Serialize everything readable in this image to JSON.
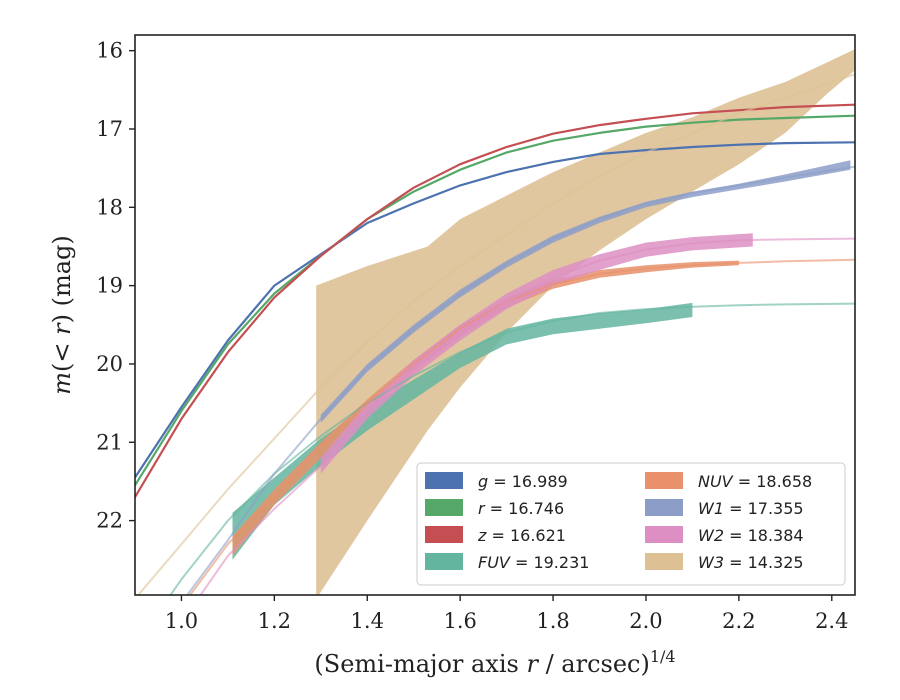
{
  "chart_data": {
    "type": "line",
    "xlabel_prefix": "(Semi-major axis ",
    "xlabel_var": "r",
    "xlabel_suffix": " / arcsec)",
    "xlabel_sup": "1/4",
    "ylabel_var1": "m",
    "ylabel_mid": "(< ",
    "ylabel_var2": "r",
    "ylabel_suffix": ") (mag)",
    "xlim": [
      0.9,
      2.45
    ],
    "ylim": [
      22.95,
      15.8
    ],
    "y_inverted": true,
    "xticks": [
      1.0,
      1.2,
      1.4,
      1.6,
      1.8,
      2.0,
      2.2,
      2.4
    ],
    "xtick_labels": [
      "1.0",
      "1.2",
      "1.4",
      "1.6",
      "1.8",
      "2.0",
      "2.2",
      "2.4"
    ],
    "yticks": [
      16,
      17,
      18,
      19,
      20,
      21,
      22
    ],
    "ytick_labels": [
      "16",
      "17",
      "18",
      "19",
      "20",
      "21",
      "22"
    ],
    "grid": false,
    "legend_position": "lower-right",
    "series": [
      {
        "name": "g",
        "label_var": "g",
        "label_value": "= 16.989",
        "color": "#4c72b0",
        "fit_x": [
          0.9,
          1.0,
          1.1,
          1.2,
          1.3,
          1.4,
          1.5,
          1.6,
          1.7,
          1.8,
          1.9,
          2.0,
          2.1,
          2.2,
          2.3,
          2.45
        ],
        "fit_y": [
          21.45,
          20.55,
          19.7,
          19.0,
          18.6,
          18.2,
          17.95,
          17.72,
          17.55,
          17.42,
          17.32,
          17.27,
          17.23,
          17.2,
          17.18,
          17.17
        ],
        "band_x": [],
        "band_lo": [],
        "band_hi": []
      },
      {
        "name": "r",
        "label_var": "r",
        "label_value": "= 16.746",
        "color": "#55a868",
        "fit_x": [
          0.9,
          1.0,
          1.1,
          1.2,
          1.3,
          1.4,
          1.5,
          1.6,
          1.7,
          1.8,
          1.9,
          2.0,
          2.1,
          2.2,
          2.3,
          2.45
        ],
        "fit_y": [
          21.55,
          20.6,
          19.75,
          19.1,
          18.62,
          18.15,
          17.8,
          17.52,
          17.3,
          17.15,
          17.05,
          16.97,
          16.92,
          16.88,
          16.86,
          16.83
        ],
        "band_x": [],
        "band_lo": [],
        "band_hi": []
      },
      {
        "name": "z",
        "label_var": "z",
        "label_value": "= 16.621",
        "color": "#c44e52",
        "fit_x": [
          0.9,
          1.0,
          1.1,
          1.2,
          1.3,
          1.4,
          1.5,
          1.6,
          1.7,
          1.8,
          1.9,
          2.0,
          2.1,
          2.2,
          2.3,
          2.45
        ],
        "fit_y": [
          21.7,
          20.7,
          19.85,
          19.15,
          18.62,
          18.15,
          17.75,
          17.45,
          17.23,
          17.06,
          16.95,
          16.87,
          16.8,
          16.76,
          16.72,
          16.69
        ],
        "band_x": [],
        "band_lo": [],
        "band_hi": []
      },
      {
        "name": "FUV",
        "label_var": "FUV",
        "label_value": "= 19.231",
        "color": "#64b5a0",
        "fit_x": [
          0.9,
          1.0,
          1.1,
          1.2,
          1.3,
          1.4,
          1.5,
          1.6,
          1.7,
          1.8,
          1.9,
          2.0,
          2.1,
          2.2,
          2.3,
          2.45
        ],
        "fit_y": [
          23.6,
          22.75,
          22.0,
          21.4,
          20.92,
          20.5,
          20.15,
          19.85,
          19.6,
          19.45,
          19.35,
          19.3,
          19.27,
          19.25,
          19.24,
          19.23
        ],
        "band_x": [
          1.11,
          1.2,
          1.3,
          1.4,
          1.5,
          1.6,
          1.7,
          1.8,
          1.9,
          2.0,
          2.1
        ],
        "band_lo": [
          21.9,
          21.45,
          20.95,
          20.55,
          20.2,
          19.85,
          19.55,
          19.42,
          19.35,
          19.3,
          19.22
        ],
        "band_hi": [
          22.5,
          21.8,
          21.3,
          20.85,
          20.45,
          20.05,
          19.75,
          19.62,
          19.55,
          19.48,
          19.4
        ]
      },
      {
        "name": "NUV",
        "label_var": "NUV",
        "label_value": "= 18.658",
        "color": "#e8916a",
        "fit_x": [
          0.9,
          1.0,
          1.1,
          1.2,
          1.3,
          1.4,
          1.5,
          1.6,
          1.7,
          1.8,
          1.9,
          2.0,
          2.1,
          2.2,
          2.3,
          2.45
        ],
        "fit_y": [
          24.0,
          23.1,
          22.3,
          21.7,
          21.05,
          20.5,
          20.0,
          19.55,
          19.2,
          18.98,
          18.85,
          18.78,
          18.74,
          18.71,
          18.69,
          18.67
        ],
        "band_x": [
          1.11,
          1.2,
          1.3,
          1.4,
          1.5,
          1.6,
          1.7,
          1.8,
          1.9,
          2.0,
          2.1,
          2.2
        ],
        "band_lo": [
          22.2,
          21.6,
          21.0,
          20.45,
          19.95,
          19.5,
          19.15,
          18.93,
          18.8,
          18.74,
          18.7,
          18.68
        ],
        "band_hi": [
          22.45,
          21.8,
          21.2,
          20.6,
          20.1,
          19.65,
          19.28,
          19.04,
          18.9,
          18.83,
          18.77,
          18.74
        ]
      },
      {
        "name": "W1",
        "label_var": "W1",
        "label_value": "= 17.355",
        "color": "#8c9ec8",
        "fit_x": [
          0.9,
          1.0,
          1.1,
          1.2,
          1.3,
          1.4,
          1.5,
          1.6,
          1.7,
          1.8,
          1.9,
          2.0,
          2.1,
          2.2,
          2.3,
          2.45
        ],
        "fit_y": [
          23.9,
          23.05,
          22.25,
          21.4,
          20.7,
          20.05,
          19.55,
          19.1,
          18.72,
          18.4,
          18.15,
          17.95,
          17.82,
          17.72,
          17.62,
          17.48
        ],
        "band_x": [
          1.3,
          1.4,
          1.5,
          1.6,
          1.7,
          1.8,
          1.9,
          2.0,
          2.1,
          2.2,
          2.3,
          2.44
        ],
        "band_lo": [
          20.65,
          20.0,
          19.5,
          19.05,
          18.68,
          18.36,
          18.12,
          17.93,
          17.8,
          17.7,
          17.58,
          17.4
        ],
        "band_hi": [
          20.75,
          20.1,
          19.6,
          19.15,
          18.77,
          18.45,
          18.2,
          18.0,
          17.87,
          17.77,
          17.67,
          17.52
        ]
      },
      {
        "name": "W2",
        "label_var": "W2",
        "label_value": "= 18.384",
        "color": "#dd8fc3",
        "fit_x": [
          0.9,
          1.0,
          1.1,
          1.2,
          1.3,
          1.4,
          1.5,
          1.6,
          1.7,
          1.8,
          1.9,
          2.0,
          2.1,
          2.2,
          2.3,
          2.45
        ],
        "fit_y": [
          24.2,
          23.3,
          22.45,
          21.85,
          21.3,
          20.6,
          20.05,
          19.6,
          19.2,
          18.9,
          18.68,
          18.54,
          18.46,
          18.42,
          18.41,
          18.4
        ],
        "band_x": [
          1.3,
          1.4,
          1.5,
          1.6,
          1.7,
          1.8,
          1.9,
          2.0,
          2.1,
          2.23
        ],
        "band_lo": [
          21.2,
          20.5,
          19.95,
          19.5,
          19.1,
          18.8,
          18.6,
          18.45,
          18.38,
          18.33
        ],
        "band_hi": [
          21.4,
          20.7,
          20.15,
          19.7,
          19.3,
          19.0,
          18.8,
          18.63,
          18.55,
          18.5
        ]
      },
      {
        "name": "W3",
        "label_var": "W3",
        "label_value": "= 14.325",
        "color": "#ddc195",
        "fit_x": [
          0.9,
          1.0,
          1.1,
          1.2,
          1.3,
          1.4,
          1.5,
          1.6,
          1.7,
          1.8,
          1.9,
          2.0,
          2.1,
          2.2,
          2.3,
          2.45
        ],
        "fit_y": [
          23.0,
          22.3,
          21.6,
          20.95,
          20.3,
          19.72,
          19.2,
          18.75,
          18.35,
          17.95,
          17.6,
          17.3,
          17.05,
          16.8,
          16.6,
          16.3
        ],
        "band_x": [
          1.29,
          1.4,
          1.53,
          1.6,
          1.7,
          1.8,
          1.9,
          2.0,
          2.1,
          2.2,
          2.3,
          2.39,
          2.45
        ],
        "band_lo": [
          23.0,
          22.0,
          20.85,
          20.3,
          19.6,
          19.0,
          18.55,
          18.15,
          17.8,
          17.45,
          17.05,
          16.55,
          16.25
        ],
        "band_hi": [
          19.0,
          18.75,
          18.5,
          18.15,
          17.85,
          17.55,
          17.3,
          17.05,
          16.85,
          16.6,
          16.4,
          16.15,
          15.98
        ]
      }
    ]
  }
}
